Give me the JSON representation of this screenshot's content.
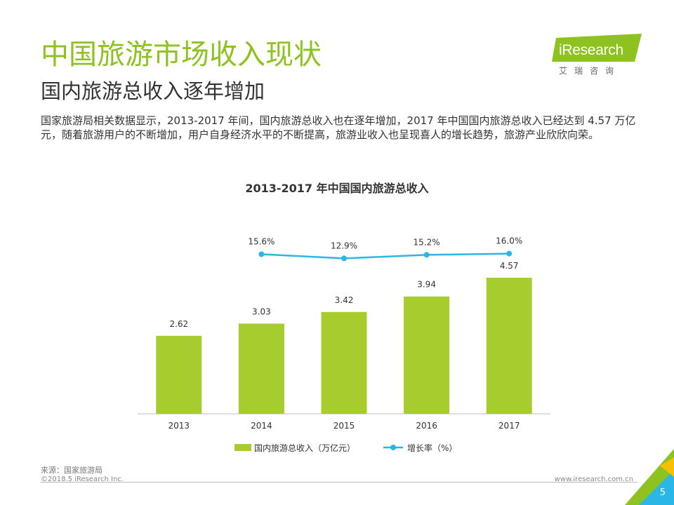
{
  "header": {
    "title": "中国旅游市场收入现状",
    "subtitle": "国内旅游总收入逐年增加",
    "description": "国家旅游局相关数据显示，2013-2017 年间，国内旅游总收入也在逐年增加，2017 年中国国内旅游总收入已经达到 4.57 万亿元，随着旅游用户的不断增加，用户自身经济水平的不断提高，旅游业收入也呈现喜人的增长趋势，旅游产业欣欣向荣。"
  },
  "logo": {
    "word": "iResearch",
    "chinese": "艾瑞咨询",
    "color": "#8dc21f"
  },
  "chart_data": {
    "type": "bar",
    "title": "2013-2017 年中国国内旅游总收入",
    "categories": [
      "2013",
      "2014",
      "2015",
      "2016",
      "2017"
    ],
    "series": [
      {
        "name": "国内旅游总收入（万亿元）",
        "kind": "bar",
        "values": [
          2.62,
          3.03,
          3.42,
          3.94,
          4.57
        ],
        "labels": [
          "2.62",
          "3.03",
          "3.42",
          "3.94",
          "4.57"
        ],
        "color": "#a6cc2e"
      },
      {
        "name": "增长率（%）",
        "kind": "line",
        "values": [
          null,
          15.6,
          12.9,
          15.2,
          16.0
        ],
        "labels": [
          "",
          "15.6%",
          "12.9%",
          "15.2%",
          "16.0%"
        ],
        "color": "#2ab6e6"
      }
    ],
    "legend": "bottom",
    "grid": false
  },
  "footer": {
    "source": "来源：国家旅游局",
    "copyright": "©2018.5 iResearch Inc.",
    "website": "www.iresearch.com.cn",
    "page": "5"
  }
}
